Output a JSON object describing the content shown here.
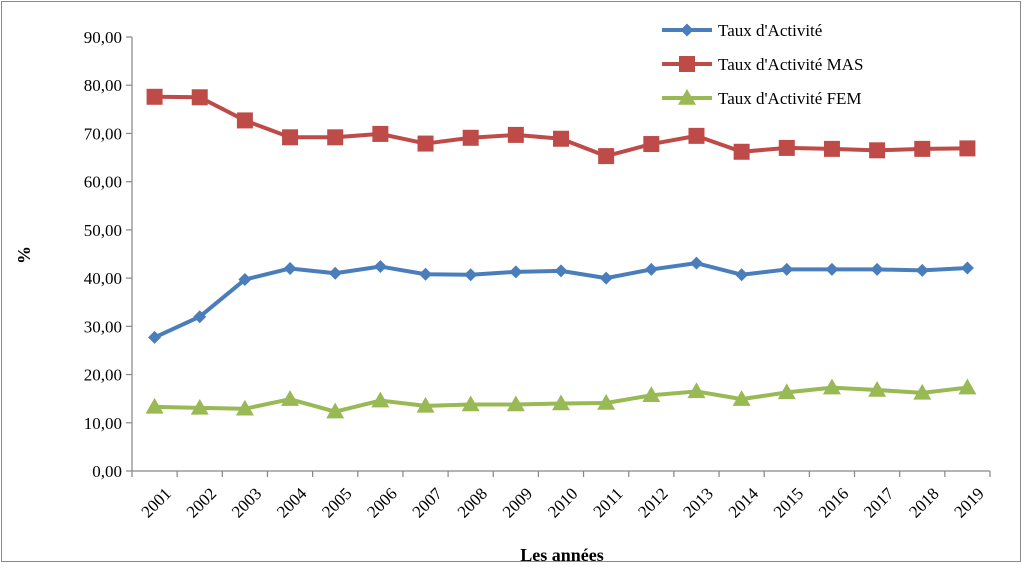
{
  "chart_data": {
    "type": "line",
    "title": "",
    "xlabel": "Les années",
    "ylabel": "%",
    "ylim": [
      0,
      90
    ],
    "yticks": [
      "0,00",
      "10,00",
      "20,00",
      "30,00",
      "40,00",
      "50,00",
      "60,00",
      "70,00",
      "80,00",
      "90,00"
    ],
    "categories": [
      "2001",
      "2002",
      "2003",
      "2004",
      "2005",
      "2006",
      "2007",
      "2008",
      "2009",
      "2010",
      "2011",
      "2012",
      "2013",
      "2014",
      "2015",
      "2016",
      "2017",
      "2018",
      "2019"
    ],
    "grid": false,
    "legend_position": "top-right",
    "series": [
      {
        "name": "Taux d'Activité",
        "color": "#4a7ebb",
        "marker": "diamond",
        "values": [
          27.7,
          32.0,
          39.7,
          42.0,
          41.0,
          42.4,
          40.8,
          40.7,
          41.3,
          41.5,
          40.0,
          41.8,
          43.1,
          40.7,
          41.8,
          41.8,
          41.8,
          41.6,
          42.1
        ]
      },
      {
        "name": "Taux d'Activité  MAS",
        "color": "#be4b48",
        "marker": "square",
        "values": [
          77.6,
          77.5,
          72.7,
          69.2,
          69.2,
          69.9,
          67.9,
          69.1,
          69.7,
          68.9,
          65.3,
          67.8,
          69.5,
          66.2,
          67.0,
          66.8,
          66.5,
          66.8,
          66.9
        ]
      },
      {
        "name": "Taux d'Activité FEM",
        "color": "#98b954",
        "marker": "triangle",
        "values": [
          13.3,
          13.1,
          12.9,
          14.9,
          12.3,
          14.6,
          13.5,
          13.8,
          13.8,
          14.0,
          14.1,
          15.7,
          16.5,
          14.9,
          16.3,
          17.3,
          16.8,
          16.2,
          17.3
        ]
      }
    ]
  }
}
